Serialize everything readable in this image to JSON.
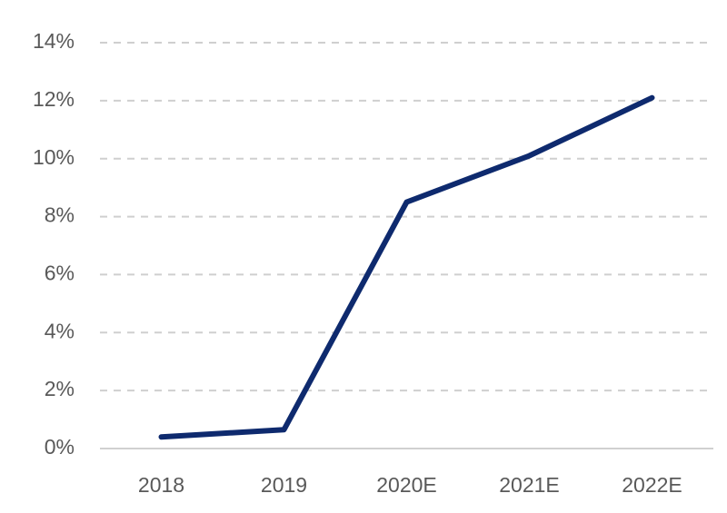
{
  "chart_data": {
    "type": "line",
    "categories": [
      "2018",
      "2019",
      "2020E",
      "2021E",
      "2022E"
    ],
    "values": [
      0.4,
      0.65,
      8.5,
      10.1,
      12.1
    ],
    "color": "#0e2a6e",
    "ylim": [
      0,
      14
    ],
    "yticks": [
      {
        "value": 0,
        "label": "0%"
      },
      {
        "value": 2,
        "label": "2%"
      },
      {
        "value": 4,
        "label": "4%"
      },
      {
        "value": 6,
        "label": "6%"
      },
      {
        "value": 8,
        "label": "8%"
      },
      {
        "value": 10,
        "label": "10%"
      },
      {
        "value": 12,
        "label": "12%"
      },
      {
        "value": 14,
        "label": "14%"
      }
    ],
    "grid": true
  }
}
